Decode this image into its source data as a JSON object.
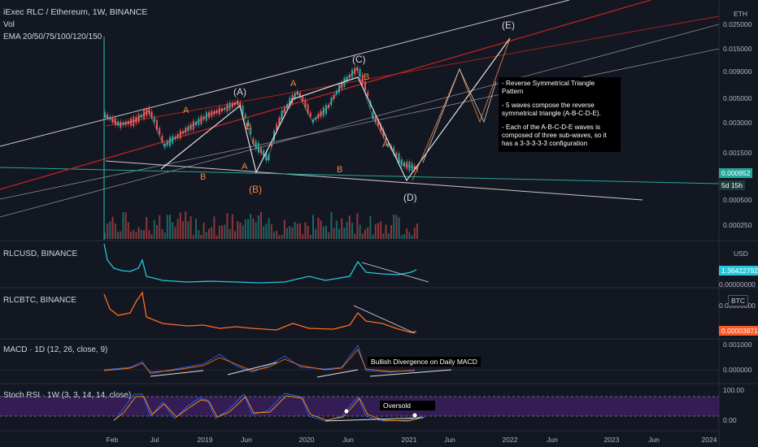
{
  "header": {
    "title": "iExec RLC / Ethereum, 1W, BINANCE",
    "vol_label": "Vol",
    "ema_label": "EMA 20/50/75/100/120/150",
    "currency": "ETH"
  },
  "price_axis": {
    "ticks": [
      "0.025000",
      "0.015000",
      "0.009000",
      "0.005000",
      "0.003000",
      "0.001500",
      "0.000500",
      "0.000250"
    ],
    "last_price": "0.000952",
    "countdown": "5d 15h"
  },
  "wave_labels": {
    "E": "(E)",
    "C": "(C)",
    "A_paren": "(A)",
    "B_paren": "(B)",
    "D_paren": "(D)",
    "A": "A",
    "B": "B"
  },
  "note": {
    "p1": "- Reverse Symmetrical Triangle Pattern",
    "p2": "- 5 waves compose the reverse symmetrical triangle (A-B-C-D-E).",
    "p3": "- Each of the A-B-C-D-E waves is composed of three sub-waves, so it has a 3-3-3-3-3 configuration"
  },
  "panels": {
    "rlcusd": {
      "title": "RLCUSD, BINANCE",
      "currency": "USD",
      "last": "1.36422792",
      "bottom": "0.00000000"
    },
    "rlcbtc": {
      "title": "RLCBTC, BINANCE",
      "currency": "BTC",
      "top": "0.00000000",
      "last": "0.00003871"
    },
    "macd": {
      "title": "MACD · 1D (12, 26, close, 9)",
      "top": "0.001000",
      "zero": "0.000000",
      "annotation": "Bullish Divergence on Daily MACD"
    },
    "stoch": {
      "title": "Stoch RSI · 1W (3, 3, 14, 14, close)",
      "top": "100.00",
      "bottom": "0.00",
      "annotation": "Oversold"
    }
  },
  "time_axis": [
    "Feb",
    "Jul",
    "2019",
    "Jun",
    "2020",
    "Jun",
    "2021",
    "Jun",
    "2022",
    "Jun",
    "2023",
    "Jun",
    "2024"
  ],
  "colors": {
    "background": "#131722",
    "candle_up": "#26a69a",
    "candle_down": "#ef5350",
    "wave_label": "#f4873e",
    "rlcusd_line": "#26c6da",
    "rlcbtc_line": "#ff6d1f",
    "trend_red": "#b22222",
    "stoch_band": "#3b1f5e",
    "price_tag": "#26a69a",
    "btc_tag": "#ff5722"
  },
  "chart_data": {
    "type": "line",
    "title": "iExec RLC / Ethereum, 1W, BINANCE",
    "y_scale": "log",
    "ylim": [
      0.0002,
      0.03
    ],
    "x": [
      "2018-01",
      "2018-02",
      "2018-04",
      "2018-06",
      "2018-07",
      "2018-09",
      "2018-11",
      "2019-01",
      "2019-03",
      "2019-05",
      "2019-06",
      "2019-08",
      "2019-10",
      "2019-12",
      "2020-02",
      "2020-04",
      "2020-06",
      "2020-07",
      "2020-09",
      "2020-10",
      "2020-12",
      "2021-01"
    ],
    "series": [
      {
        "values": [
          0.003,
          0.0024,
          0.0026,
          0.0033,
          0.0015,
          0.0019,
          0.0024,
          0.003,
          0.0034,
          0.004,
          0.0016,
          0.0011,
          0.0032,
          0.005,
          0.0026,
          0.0035,
          0.006,
          0.0085,
          0.003,
          0.0016,
          0.001,
          0.0009
        ]
      }
    ],
    "projection_x": [
      "2021-01",
      "2021-04",
      "2021-07",
      "2021-09",
      "2021-12"
    ],
    "projection_y": [
      0.0009,
      0.004,
      0.002,
      0.009,
      0.02
    ],
    "grid": true
  }
}
